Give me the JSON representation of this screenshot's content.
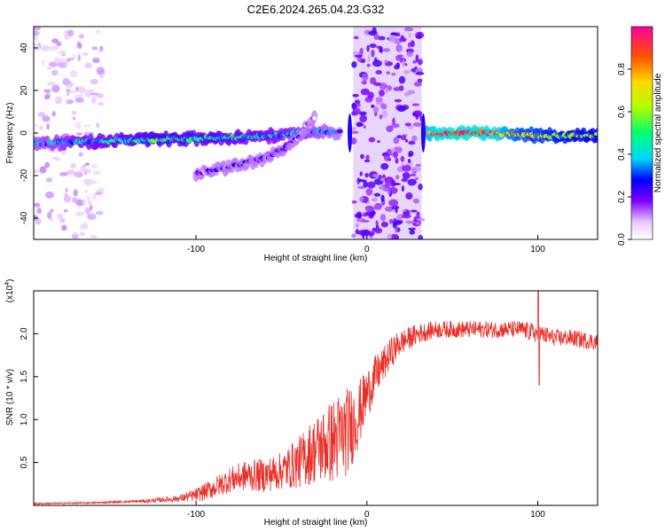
{
  "title": "C2E6.2024.265.04.23.G32",
  "chart_data": [
    {
      "type": "heatmap",
      "xlabel": "Height of straight line (km)",
      "ylabel": "Frequency (Hz)",
      "xlim": [
        -195,
        135
      ],
      "ylim": [
        -50,
        50
      ],
      "xticks": [
        -100,
        0,
        100
      ],
      "yticks": [
        -40,
        -20,
        0,
        20,
        40
      ],
      "colorbar": {
        "label": "Normalized spectral amplitude",
        "range": [
          0,
          1
        ],
        "ticks": [
          0.0,
          0.2,
          0.4,
          0.6,
          0.8
        ]
      },
      "noise_bands_x": [
        [
          -195,
          -155
        ],
        [
          -8,
          32
        ]
      ],
      "ridges": [
        {
          "x": [
            -195,
            -160,
            -120,
            -90,
            -60,
            -40,
            -25,
            -15
          ],
          "y": [
            -5,
            -4,
            -3,
            -2.5,
            -1.5,
            0,
            1,
            0
          ],
          "amplitude": [
            0.3,
            0.4,
            0.5,
            0.45,
            0.4,
            0.35,
            0.3,
            0.25
          ]
        },
        {
          "x": [
            -100,
            -80,
            -70,
            -60,
            -50,
            -40,
            -30
          ],
          "y": [
            -19,
            -16,
            -14,
            -12,
            -8,
            -2,
            8
          ],
          "amplitude": [
            0.15,
            0.2,
            0.2,
            0.2,
            0.18,
            0.15,
            0.1
          ]
        },
        {
          "x": [
            35,
            50,
            70,
            90,
            110,
            135
          ],
          "y": [
            0,
            0,
            0,
            -1,
            -1.5,
            -1
          ],
          "amplitude": [
            0.8,
            0.95,
            0.9,
            0.7,
            0.65,
            0.6
          ]
        }
      ]
    },
    {
      "type": "line",
      "xlabel": "Height of straight line (km)",
      "ylabel": "SNR (10 * v/v)",
      "yscale_label": "(x10",
      "yscale_exponent": "4",
      "xlim": [
        -195,
        135
      ],
      "ylim": [
        0,
        2.5
      ],
      "xticks": [
        -100,
        0,
        100
      ],
      "yticks": [
        0.5,
        1.0,
        1.5,
        2.0
      ],
      "ytick_labels": [
        "0.5",
        "1.0",
        "1.5",
        "2.0"
      ],
      "color": "#e8302a",
      "series_envelope": {
        "x": [
          -195,
          -160,
          -130,
          -110,
          -100,
          -90,
          -80,
          -70,
          -60,
          -50,
          -40,
          -30,
          -20,
          -15,
          -10,
          -5,
          0,
          5,
          10,
          15,
          20,
          30,
          40,
          50,
          60,
          70,
          80,
          90,
          100,
          110,
          120,
          135
        ],
        "mean": [
          0.02,
          0.03,
          0.05,
          0.08,
          0.12,
          0.2,
          0.3,
          0.35,
          0.35,
          0.4,
          0.5,
          0.65,
          0.75,
          0.8,
          0.9,
          1.05,
          1.3,
          1.5,
          1.65,
          1.8,
          1.9,
          2.0,
          2.05,
          2.05,
          2.05,
          2.05,
          2.05,
          2.05,
          2.0,
          1.95,
          1.95,
          1.9
        ],
        "spread": [
          0.01,
          0.01,
          0.02,
          0.04,
          0.08,
          0.12,
          0.15,
          0.18,
          0.2,
          0.22,
          0.3,
          0.4,
          0.5,
          0.55,
          0.5,
          0.4,
          0.3,
          0.25,
          0.2,
          0.18,
          0.15,
          0.12,
          0.1,
          0.1,
          0.1,
          0.1,
          0.1,
          0.1,
          0.12,
          0.1,
          0.1,
          0.1
        ]
      }
    }
  ]
}
